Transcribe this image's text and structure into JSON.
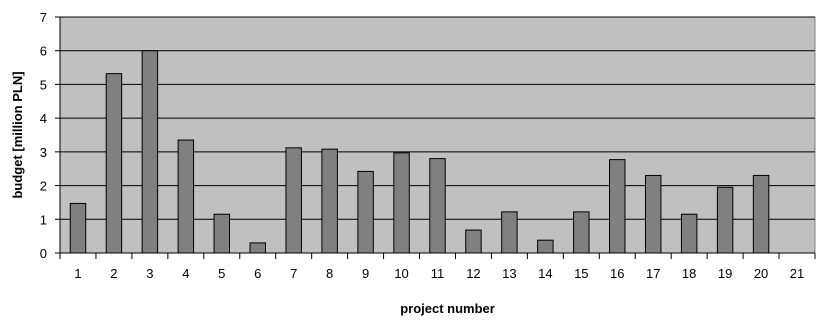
{
  "chart_data": {
    "type": "bar",
    "xlabel": "project number",
    "ylabel": "budget [million PLN]",
    "ylim": [
      0,
      7
    ],
    "yticks": [
      0,
      1,
      2,
      3,
      4,
      5,
      6,
      7
    ],
    "categories": [
      "1",
      "2",
      "3",
      "4",
      "5",
      "6",
      "7",
      "8",
      "9",
      "10",
      "11",
      "12",
      "13",
      "14",
      "15",
      "16",
      "17",
      "18",
      "19",
      "20",
      "21"
    ],
    "values": [
      1.47,
      5.32,
      6.0,
      3.35,
      1.15,
      0.3,
      3.12,
      3.08,
      2.42,
      2.97,
      2.8,
      0.68,
      1.22,
      0.38,
      1.22,
      2.77,
      2.3,
      1.15,
      1.95,
      2.3,
      0
    ],
    "grid": true,
    "legend": "none",
    "colors": {
      "plot_background": "#c0c0c0",
      "bar_fill": "#808080",
      "bar_stroke": "#000000",
      "gridline": "#000000"
    }
  }
}
